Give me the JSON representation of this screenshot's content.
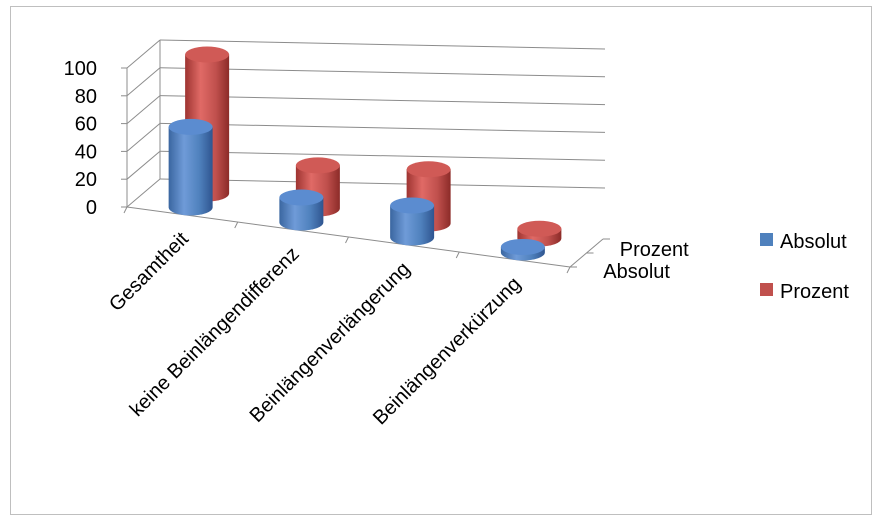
{
  "chart_data": {
    "type": "bar",
    "subtype": "3d-cylinder",
    "title": "",
    "xlabel": "",
    "ylabel": "",
    "ylim": [
      0,
      100
    ],
    "yticks": [
      "0",
      "20",
      "40",
      "60",
      "80",
      "100"
    ],
    "categories": [
      "Gesamtheit",
      "keine Beinlängendifferenz",
      "Beinlängenverlängerung",
      "Beinlängenverkürzung"
    ],
    "depth_labels": [
      "Absolut",
      "Prozent"
    ],
    "series": [
      {
        "name": "Absolut",
        "color": "#4f81bd",
        "values": [
          58,
          18,
          23,
          4
        ]
      },
      {
        "name": "Prozent",
        "color": "#c0504d",
        "values": [
          100,
          31,
          39,
          7
        ]
      }
    ],
    "legend": {
      "position": "right",
      "entries": [
        "Absolut",
        "Prozent"
      ]
    },
    "grid": true
  }
}
